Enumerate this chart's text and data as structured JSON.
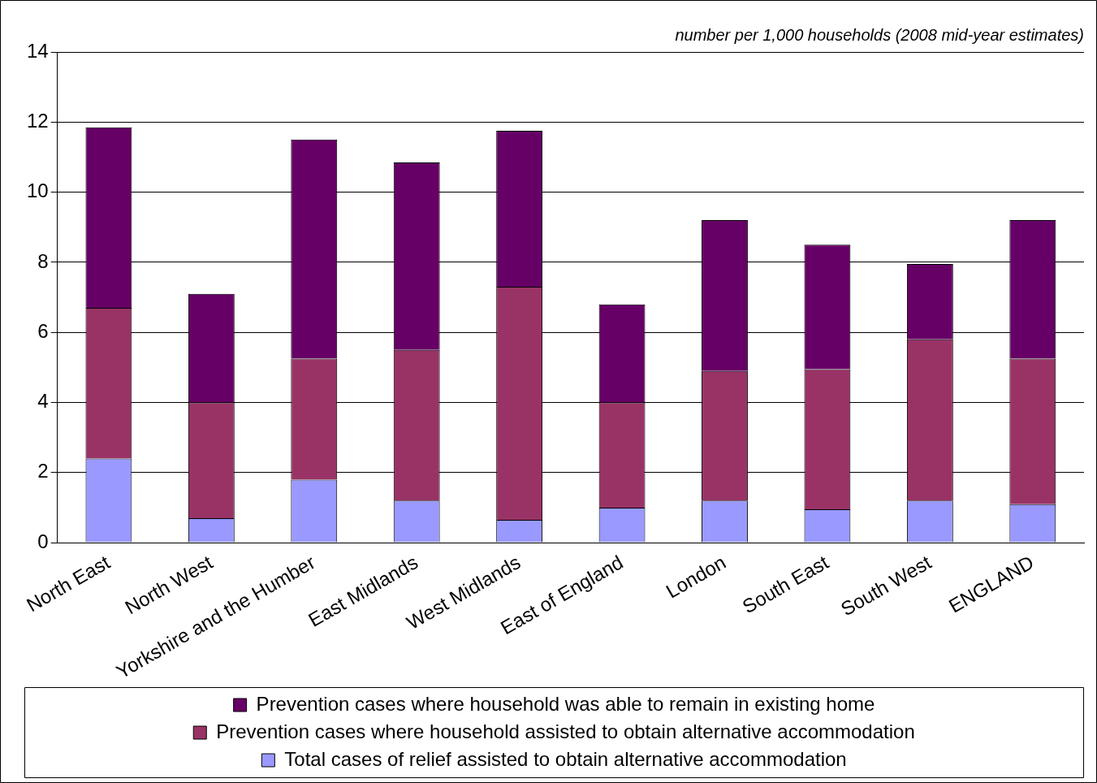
{
  "chart_data": {
    "type": "bar",
    "subtitle": "number per 1,000 households (2008 mid-year estimates)",
    "categories": [
      "North East",
      "North West",
      "Yorkshire and the Humber",
      "East Midlands",
      "West Midlands",
      "East of England",
      "London",
      "South East",
      "South West",
      "ENGLAND"
    ],
    "stacked": true,
    "series": [
      {
        "name": "Total cases of relief assisted to obtain alternative accommodation",
        "color": "#9999ff",
        "values": [
          2.4,
          0.7,
          1.8,
          1.2,
          0.65,
          1.0,
          1.2,
          0.95,
          1.2,
          1.1
        ]
      },
      {
        "name": "Prevention cases where household assisted to obtain alternative accommodation",
        "color": "#993366",
        "values": [
          4.3,
          3.3,
          3.45,
          4.3,
          6.65,
          3.0,
          3.7,
          4.0,
          4.6,
          4.15
        ]
      },
      {
        "name": "Prevention cases where household was able to remain in existing home",
        "color": "#660066",
        "values": [
          5.15,
          3.1,
          6.25,
          5.35,
          4.45,
          2.8,
          4.3,
          3.55,
          2.15,
          3.95
        ]
      }
    ],
    "ylim": [
      0,
      14
    ],
    "yticks": [
      0,
      2,
      4,
      6,
      8,
      10,
      12,
      14
    ],
    "grid": "y",
    "legend": "bottom"
  }
}
